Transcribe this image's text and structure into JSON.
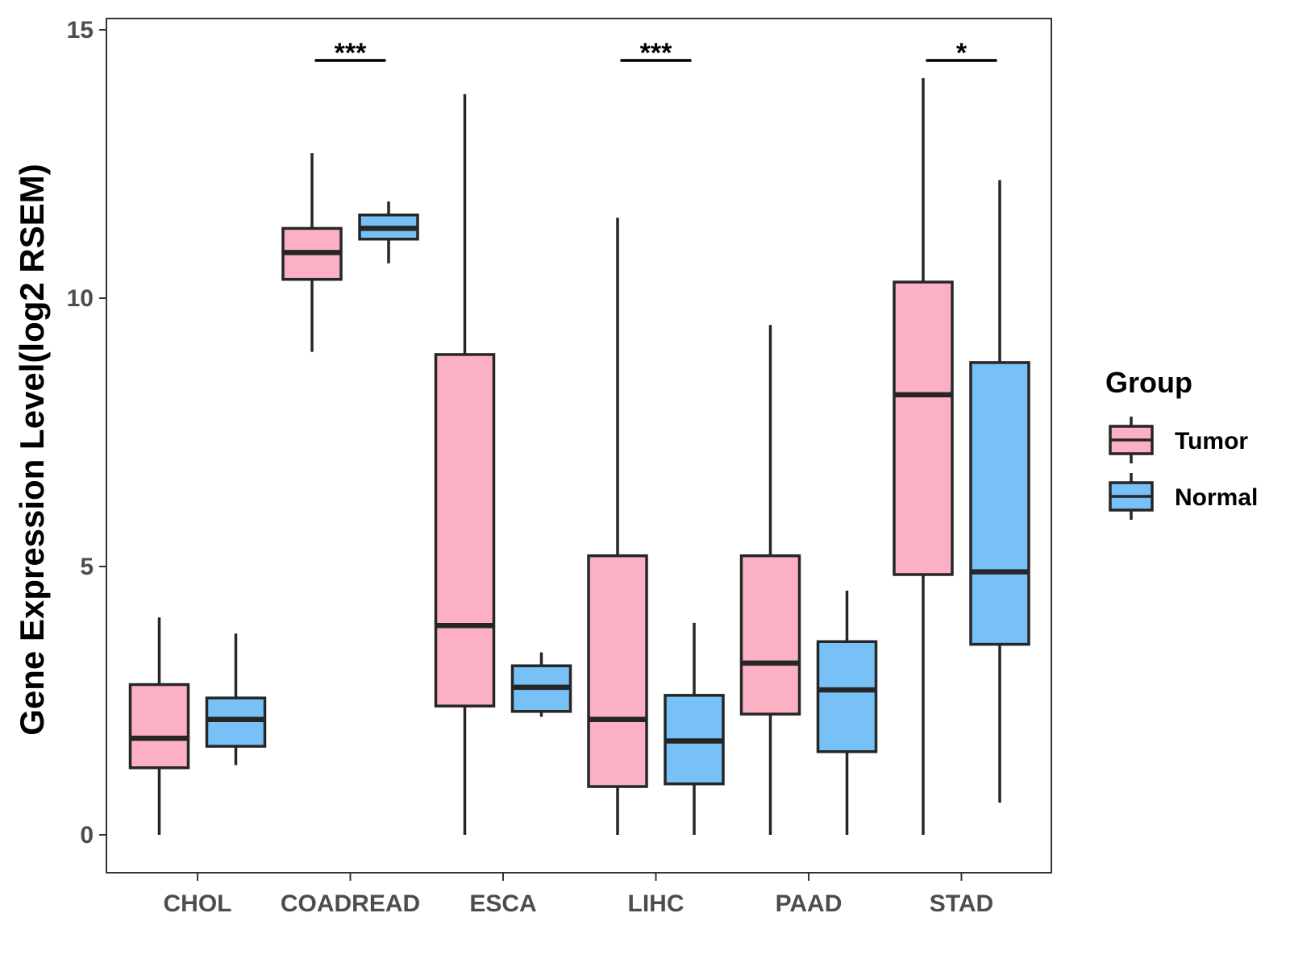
{
  "chart_data": {
    "type": "boxplot",
    "ylabel": "Gene Expression Level(log2 RSEM)",
    "xlabel": "",
    "ylim": [
      -0.7,
      15.3
    ],
    "yticks": [
      0,
      5,
      10,
      15
    ],
    "categories": [
      "CHOL",
      "COADREAD",
      "ESCA",
      "LIHC",
      "PAAD",
      "STAD"
    ],
    "legend": {
      "title": "Group",
      "position": "right",
      "entries": [
        {
          "name": "Tumor",
          "color": "#fbb1c3"
        },
        {
          "name": "Normal",
          "color": "#77c1f7"
        }
      ]
    },
    "series": [
      {
        "name": "Tumor",
        "color": "#fbb1c3",
        "boxes": [
          {
            "category": "CHOL",
            "min": 0.0,
            "q1": 1.25,
            "median": 1.8,
            "q3": 2.8,
            "max": 4.05
          },
          {
            "category": "COADREAD",
            "min": 9.0,
            "q1": 10.35,
            "median": 10.85,
            "q3": 11.3,
            "max": 12.7
          },
          {
            "category": "ESCA",
            "min": 0.0,
            "q1": 2.4,
            "median": 3.9,
            "q3": 8.95,
            "max": 13.8
          },
          {
            "category": "LIHC",
            "min": 0.0,
            "q1": 0.9,
            "median": 2.15,
            "q3": 5.2,
            "max": 11.5
          },
          {
            "category": "PAAD",
            "min": 0.0,
            "q1": 2.25,
            "median": 3.2,
            "q3": 5.2,
            "max": 9.5
          },
          {
            "category": "STAD",
            "min": 0.0,
            "q1": 4.85,
            "median": 8.2,
            "q3": 10.3,
            "max": 14.1
          }
        ]
      },
      {
        "name": "Normal",
        "color": "#77c1f7",
        "boxes": [
          {
            "category": "CHOL",
            "min": 1.3,
            "q1": 1.65,
            "median": 2.15,
            "q3": 2.55,
            "max": 3.75
          },
          {
            "category": "COADREAD",
            "min": 10.65,
            "q1": 11.1,
            "median": 11.3,
            "q3": 11.55,
            "max": 11.8
          },
          {
            "category": "ESCA",
            "min": 2.2,
            "q1": 2.3,
            "median": 2.75,
            "q3": 3.15,
            "max": 3.4
          },
          {
            "category": "LIHC",
            "min": 0.0,
            "q1": 0.95,
            "median": 1.75,
            "q3": 2.6,
            "max": 3.95
          },
          {
            "category": "PAAD",
            "min": 0.0,
            "q1": 1.55,
            "median": 2.7,
            "q3": 3.6,
            "max": 4.55
          },
          {
            "category": "STAD",
            "min": 0.6,
            "q1": 3.55,
            "median": 4.9,
            "q3": 8.8,
            "max": 12.2
          }
        ]
      }
    ],
    "annotations": [
      {
        "category": "COADREAD",
        "label": "***"
      },
      {
        "category": "LIHC",
        "label": "***"
      },
      {
        "category": "STAD",
        "label": "*"
      }
    ]
  }
}
